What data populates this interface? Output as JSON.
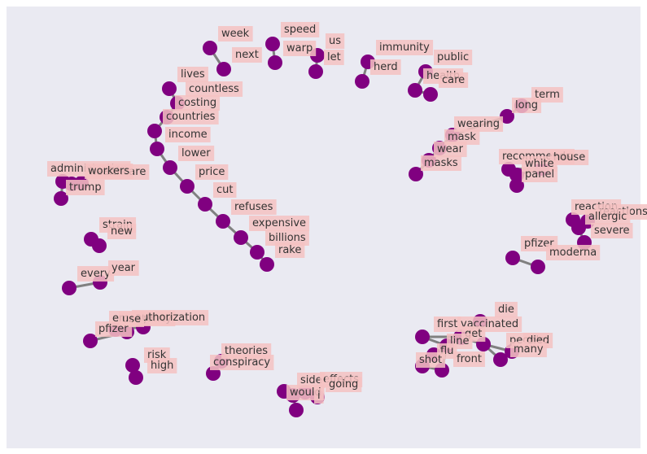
{
  "colors": {
    "background": "#eaeaf2",
    "edge": "#808080",
    "node": "#800080",
    "label_box": "#f4c2c2"
  },
  "nodes": [
    {
      "id": "week",
      "text": "week"
    },
    {
      "id": "next",
      "text": "next"
    },
    {
      "id": "speed",
      "text": "speed"
    },
    {
      "id": "warp",
      "text": "warp"
    },
    {
      "id": "us",
      "text": "us"
    },
    {
      "id": "let",
      "text": "let"
    },
    {
      "id": "immunity",
      "text": "immunity"
    },
    {
      "id": "herd",
      "text": "herd"
    },
    {
      "id": "public",
      "text": "public"
    },
    {
      "id": "health",
      "text": "health"
    },
    {
      "id": "care",
      "text": "care"
    },
    {
      "id": "lives",
      "text": "lives"
    },
    {
      "id": "countless",
      "text": "countless"
    },
    {
      "id": "costing",
      "text": "costing"
    },
    {
      "id": "countries",
      "text": "countries"
    },
    {
      "id": "income",
      "text": "income"
    },
    {
      "id": "lower",
      "text": "lower"
    },
    {
      "id": "price",
      "text": "price"
    },
    {
      "id": "cut",
      "text": "cut"
    },
    {
      "id": "refuses",
      "text": "refuses"
    },
    {
      "id": "expensive",
      "text": "expensive"
    },
    {
      "id": "billions",
      "text": "billions"
    },
    {
      "id": "rake",
      "text": "rake"
    },
    {
      "id": "term",
      "text": "term"
    },
    {
      "id": "long",
      "text": "long"
    },
    {
      "id": "wearing",
      "text": "wearing"
    },
    {
      "id": "mask",
      "text": "mask"
    },
    {
      "id": "wear",
      "text": "wear"
    },
    {
      "id": "masks",
      "text": "masks"
    },
    {
      "id": "recommends",
      "text": "recommends"
    },
    {
      "id": "house",
      "text": "house"
    },
    {
      "id": "white",
      "text": "white"
    },
    {
      "id": "panel",
      "text": "panel"
    },
    {
      "id": "administration",
      "text": "administration"
    },
    {
      "id": "healthcare",
      "text": "healthcare"
    },
    {
      "id": "workers",
      "text": "workers"
    },
    {
      "id": "trump",
      "text": "trump"
    },
    {
      "id": "reaction",
      "text": "reaction"
    },
    {
      "id": "reactions",
      "text": "reactions"
    },
    {
      "id": "allergic",
      "text": "allergic"
    },
    {
      "id": "severe",
      "text": "severe"
    },
    {
      "id": "strain",
      "text": "strain"
    },
    {
      "id": "new",
      "text": "new"
    },
    {
      "id": "pfizer_a",
      "text": "pfizer"
    },
    {
      "id": "moderna",
      "text": "moderna"
    },
    {
      "id": "every",
      "text": "every"
    },
    {
      "id": "year",
      "text": "year"
    },
    {
      "id": "emergency",
      "text": "emergency"
    },
    {
      "id": "authorization",
      "text": "authorization"
    },
    {
      "id": "use",
      "text": "use"
    },
    {
      "id": "pfizer_b",
      "text": "pfizer"
    },
    {
      "id": "die",
      "text": "die"
    },
    {
      "id": "first",
      "text": "first"
    },
    {
      "id": "vaccinated",
      "text": "vaccinated"
    },
    {
      "id": "get",
      "text": "get"
    },
    {
      "id": "people",
      "text": "people"
    },
    {
      "id": "line",
      "text": "line"
    },
    {
      "id": "died",
      "text": "died"
    },
    {
      "id": "many",
      "text": "many"
    },
    {
      "id": "flu",
      "text": "flu"
    },
    {
      "id": "front",
      "text": "front"
    },
    {
      "id": "shot",
      "text": "shot"
    },
    {
      "id": "risk",
      "text": "risk"
    },
    {
      "id": "high",
      "text": "high"
    },
    {
      "id": "theories",
      "text": "theories"
    },
    {
      "id": "conspiracy",
      "text": "conspiracy"
    },
    {
      "id": "side",
      "text": "side"
    },
    {
      "id": "effects",
      "text": "effects"
    },
    {
      "id": "going",
      "text": "going"
    },
    {
      "id": "would",
      "text": "would"
    },
    {
      "id": "i",
      "text": "i"
    }
  ],
  "edges": [
    [
      "week",
      "next"
    ],
    [
      "speed",
      "warp"
    ],
    [
      "us",
      "let"
    ],
    [
      "immunity",
      "herd"
    ],
    [
      "public",
      "health"
    ],
    [
      "health",
      "care"
    ],
    [
      "lives",
      "countless"
    ],
    [
      "countless",
      "costing"
    ],
    [
      "costing",
      "countries"
    ],
    [
      "countries",
      "income"
    ],
    [
      "income",
      "lower"
    ],
    [
      "lower",
      "price"
    ],
    [
      "price",
      "cut"
    ],
    [
      "cut",
      "refuses"
    ],
    [
      "refuses",
      "expensive"
    ],
    [
      "expensive",
      "billions"
    ],
    [
      "billions",
      "rake"
    ],
    [
      "term",
      "long"
    ],
    [
      "long",
      "wearing"
    ],
    [
      "wearing",
      "mask"
    ],
    [
      "mask",
      "wear"
    ],
    [
      "wear",
      "masks"
    ],
    [
      "recommends",
      "house"
    ],
    [
      "house",
      "white"
    ],
    [
      "white",
      "panel"
    ],
    [
      "administration",
      "healthcare"
    ],
    [
      "healthcare",
      "workers"
    ],
    [
      "administration",
      "trump"
    ],
    [
      "reaction",
      "reactions"
    ],
    [
      "reactions",
      "allergic"
    ],
    [
      "allergic",
      "severe"
    ],
    [
      "strain",
      "new"
    ],
    [
      "pfizer_a",
      "moderna"
    ],
    [
      "every",
      "year"
    ],
    [
      "emergency",
      "authorization"
    ],
    [
      "emergency",
      "use"
    ],
    [
      "use",
      "pfizer_b"
    ],
    [
      "die",
      "get"
    ],
    [
      "first",
      "vaccinated"
    ],
    [
      "vaccinated",
      "get"
    ],
    [
      "get",
      "people"
    ],
    [
      "get",
      "line"
    ],
    [
      "people",
      "died"
    ],
    [
      "people",
      "many"
    ],
    [
      "line",
      "front"
    ],
    [
      "line",
      "flu"
    ],
    [
      "flu",
      "shot"
    ],
    [
      "shot",
      "front"
    ],
    [
      "first",
      "line"
    ],
    [
      "risk",
      "high"
    ],
    [
      "theories",
      "conspiracy"
    ],
    [
      "side",
      "effects"
    ],
    [
      "effects",
      "going"
    ],
    [
      "side",
      "would"
    ],
    [
      "would",
      "i"
    ]
  ]
}
